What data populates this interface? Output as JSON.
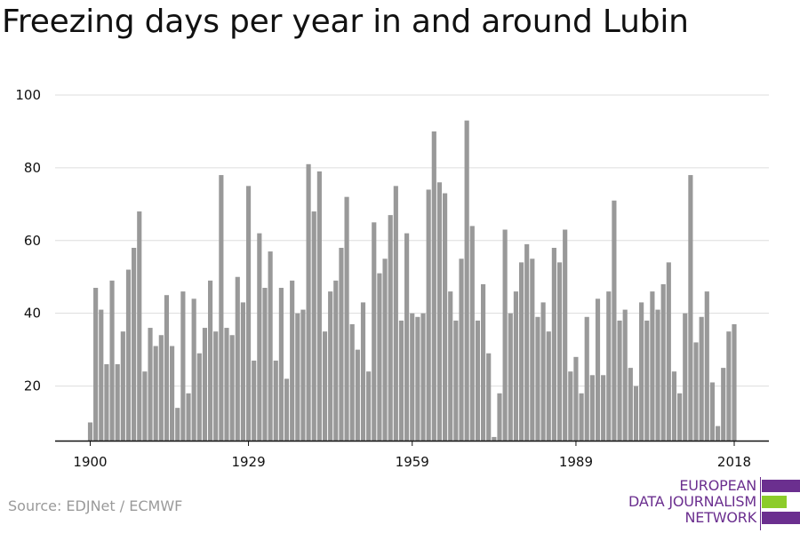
{
  "title": "Freezing days per year in and around Lubin",
  "source": "Source: EDJNet / ECMWF",
  "logo": {
    "lines": [
      "EUROPEAN",
      "DATA JOURNALISM",
      "NETWORK"
    ],
    "colors": {
      "purple": "#6b2f8f",
      "green": "#8ccc2a"
    }
  },
  "colors": {
    "bar": "#999999",
    "grid": "#dddddd",
    "axis": "#111111",
    "text": "#111111"
  },
  "chart_data": {
    "type": "bar",
    "title": "Freezing days per year in and around Lubin",
    "xlabel": "",
    "ylabel": "",
    "x_ticks": [
      "1900",
      "1929",
      "1959",
      "1989",
      "2018"
    ],
    "y_ticks": [
      20,
      40,
      60,
      80,
      100
    ],
    "ylim": [
      5,
      100
    ],
    "grid": true,
    "categories": [
      1900,
      1901,
      1902,
      1903,
      1904,
      1905,
      1906,
      1907,
      1908,
      1909,
      1910,
      1911,
      1912,
      1913,
      1914,
      1915,
      1916,
      1917,
      1918,
      1919,
      1920,
      1921,
      1922,
      1923,
      1924,
      1925,
      1926,
      1927,
      1928,
      1929,
      1930,
      1931,
      1932,
      1933,
      1934,
      1935,
      1936,
      1937,
      1938,
      1939,
      1940,
      1941,
      1942,
      1943,
      1944,
      1945,
      1946,
      1947,
      1948,
      1949,
      1950,
      1951,
      1952,
      1953,
      1954,
      1955,
      1956,
      1957,
      1958,
      1959,
      1960,
      1961,
      1962,
      1963,
      1964,
      1965,
      1966,
      1967,
      1968,
      1969,
      1970,
      1971,
      1972,
      1973,
      1974,
      1975,
      1976,
      1977,
      1978,
      1979,
      1980,
      1981,
      1982,
      1983,
      1984,
      1985,
      1986,
      1987,
      1988,
      1989,
      1990,
      1991,
      1992,
      1993,
      1994,
      1995,
      1996,
      1997,
      1998,
      1999,
      2000,
      2001,
      2002,
      2003,
      2004,
      2005,
      2006,
      2007,
      2008,
      2009,
      2010,
      2011,
      2012,
      2013,
      2014,
      2015,
      2016,
      2017,
      2018
    ],
    "values": [
      10,
      47,
      41,
      26,
      49,
      26,
      35,
      52,
      58,
      68,
      24,
      36,
      31,
      34,
      45,
      31,
      14,
      46,
      18,
      44,
      29,
      36,
      49,
      35,
      78,
      36,
      34,
      50,
      43,
      75,
      27,
      62,
      47,
      57,
      27,
      47,
      22,
      49,
      40,
      41,
      81,
      68,
      79,
      35,
      46,
      49,
      58,
      72,
      37,
      30,
      43,
      24,
      65,
      51,
      55,
      67,
      75,
      38,
      62,
      40,
      39,
      40,
      74,
      90,
      76,
      73,
      46,
      38,
      55,
      93,
      64,
      38,
      48,
      29,
      6,
      18,
      63,
      40,
      46,
      54,
      59,
      55,
      39,
      43,
      35,
      58,
      54,
      63,
      24,
      28,
      18,
      39,
      23,
      44,
      23,
      46,
      71,
      38,
      41,
      25,
      20,
      43,
      38,
      46,
      41,
      48,
      54,
      24,
      18,
      40,
      78,
      32,
      39,
      46,
      21,
      9,
      25,
      35,
      37
    ]
  }
}
